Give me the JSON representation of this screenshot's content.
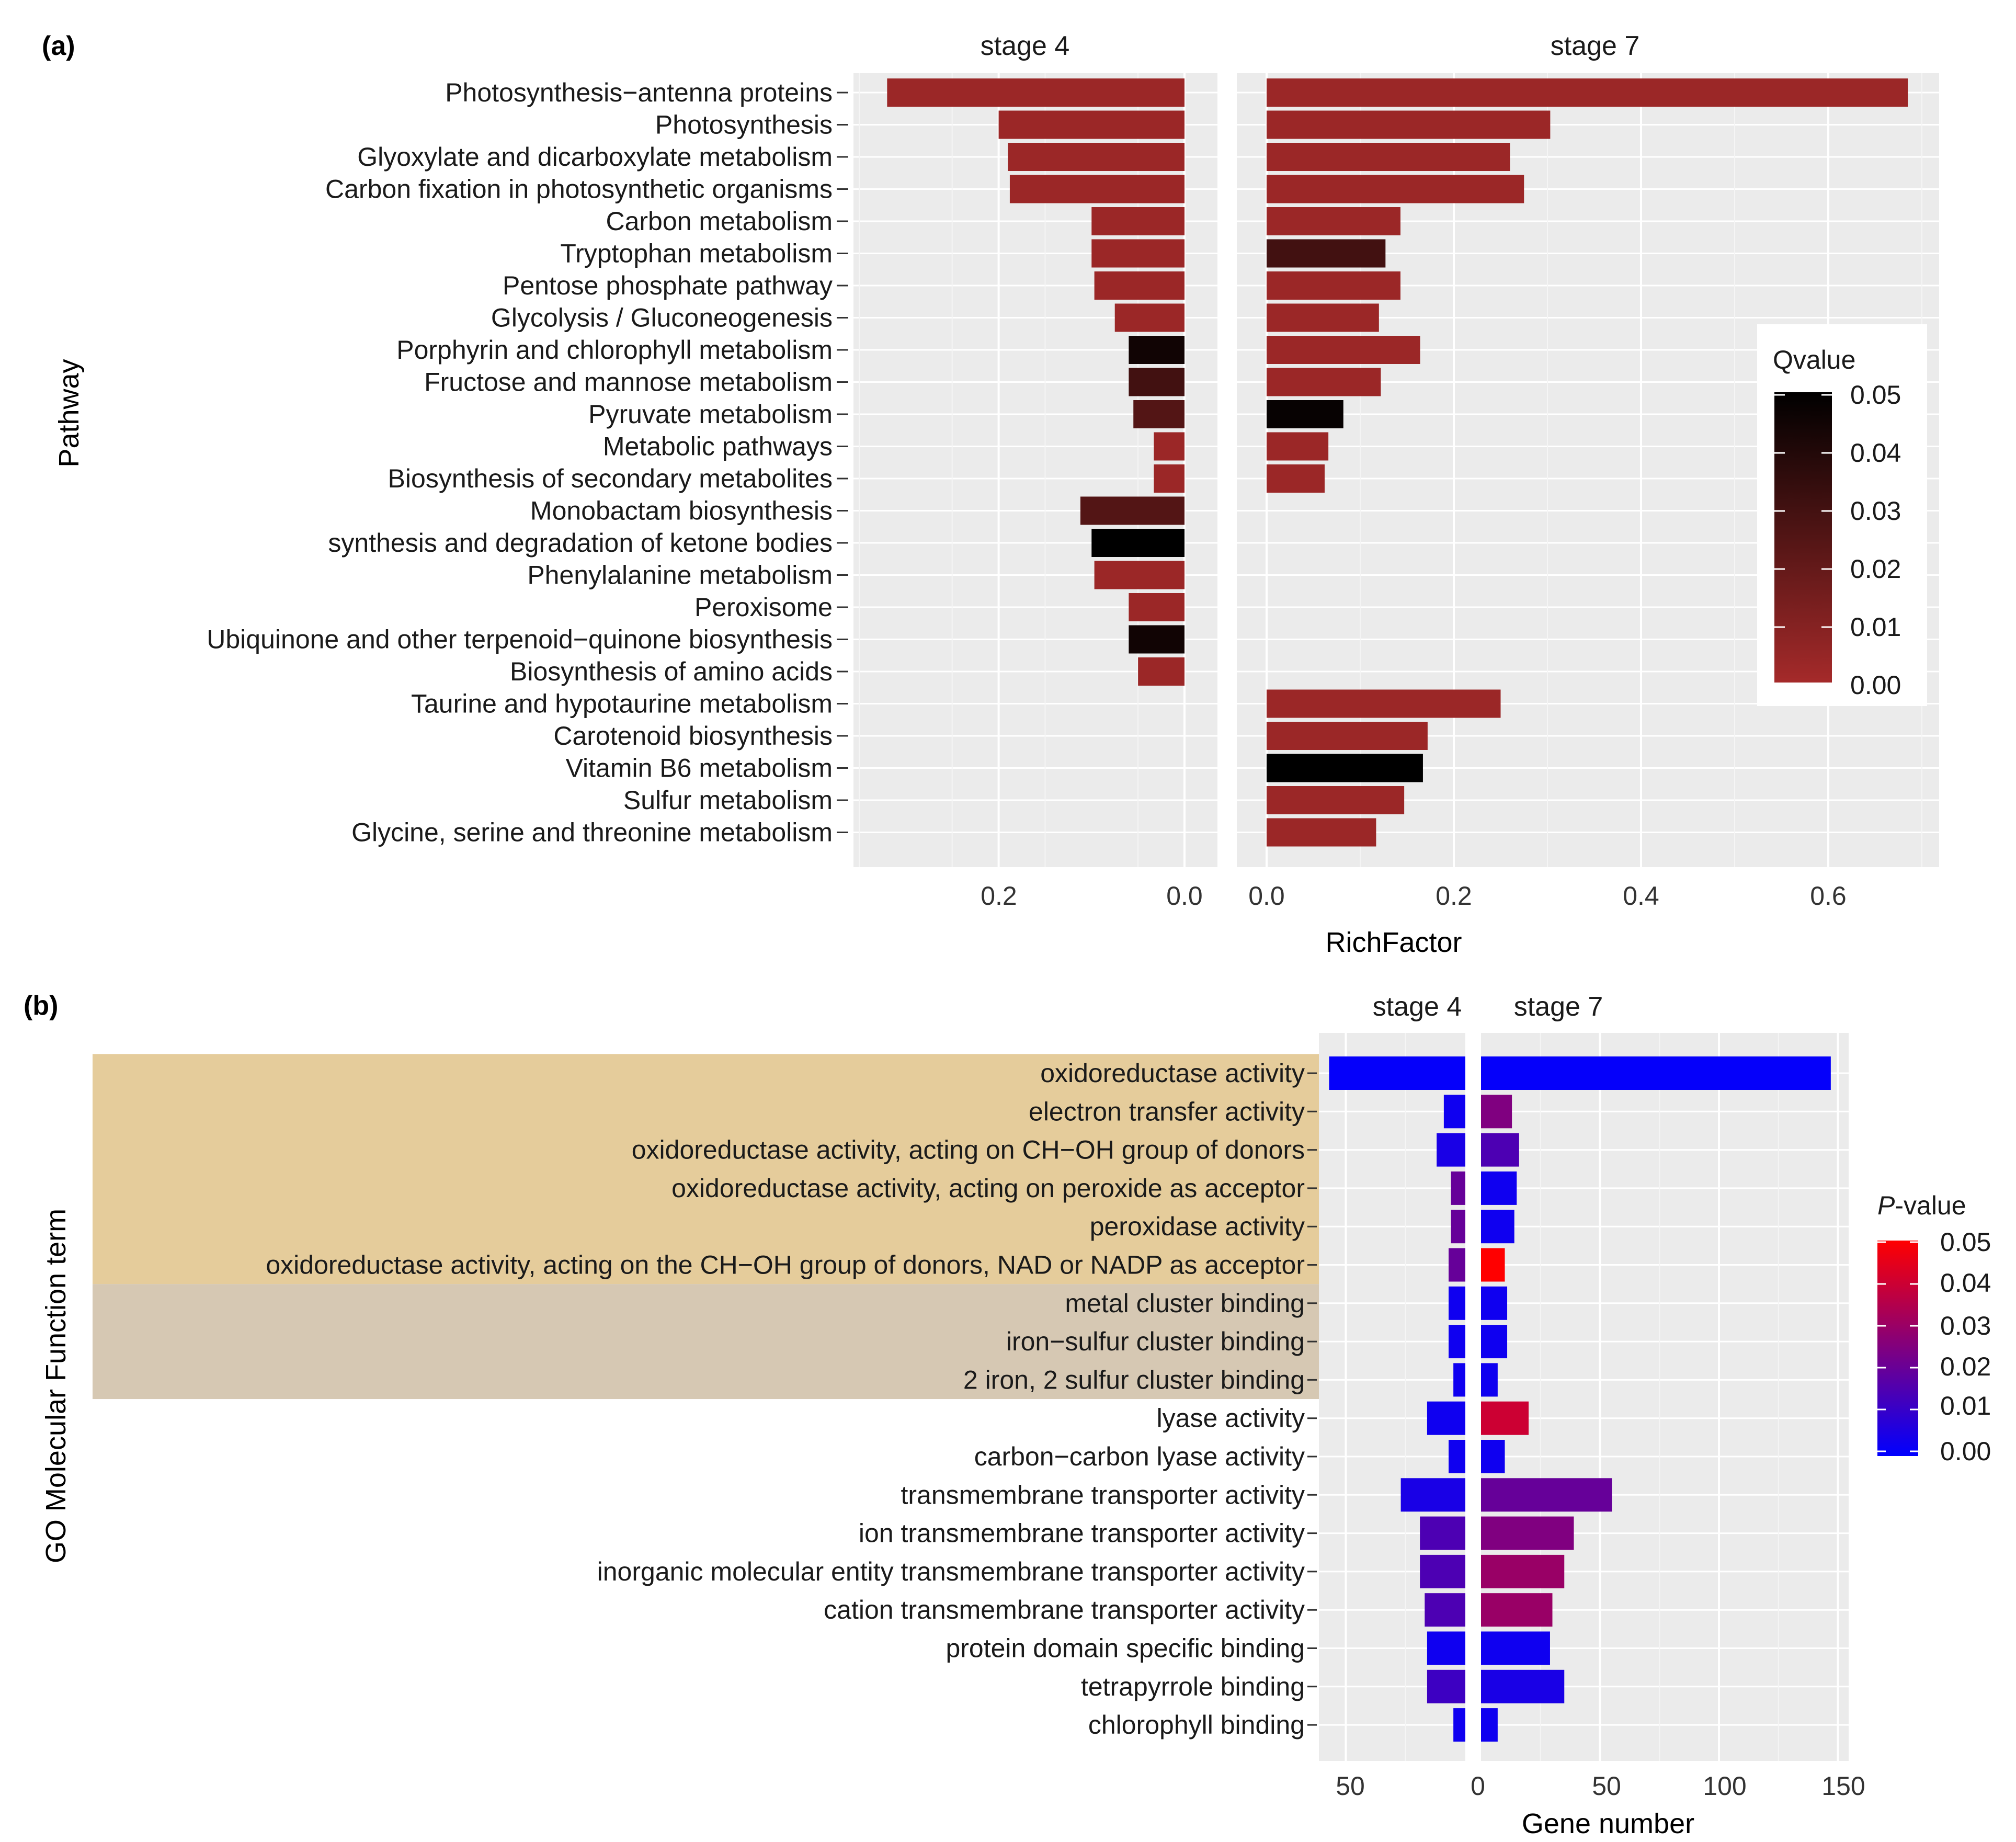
{
  "chart_data": [
    {
      "type": "bar",
      "panel_label": "(a)",
      "title": "",
      "ylabel": "Pathway",
      "xlabel": "RichFactor",
      "facets": [
        "stage 4",
        "stage 7"
      ],
      "facet_ticks": [
        [
          "0.2",
          "0.0"
        ],
        [
          "0.0",
          "0.2",
          "0.4",
          "0.6"
        ]
      ],
      "categories": [
        "Photosynthesis−antenna proteins",
        "Photosynthesis",
        "Glyoxylate and dicarboxylate metabolism",
        "Carbon fixation in photosynthetic organisms",
        "Carbon metabolism",
        "Tryptophan metabolism",
        "Pentose phosphate pathway",
        "Glycolysis / Gluconeogenesis",
        "Porphyrin and chlorophyll metabolism",
        "Fructose and mannose metabolism",
        "Pyruvate metabolism",
        "Metabolic pathways",
        "Biosynthesis of secondary metabolites",
        "Monobactam biosynthesis",
        "synthesis and degradation of ketone bodies",
        "Phenylalanine metabolism",
        "Peroxisome",
        "Ubiquinone and other terpenoid−quinone biosynthesis",
        "Biosynthesis of amino acids",
        "Taurine and hypotaurine metabolism",
        "Carotenoid biosynthesis",
        "Vitamin B6 metabolism",
        "Sulfur metabolism",
        "Glycine, serine and threonine metabolism"
      ],
      "series": [
        {
          "name": "stage 4",
          "values": [
            0.32,
            0.2,
            0.19,
            0.188,
            0.1,
            0.1,
            0.097,
            0.075,
            0.06,
            0.06,
            0.055,
            0.033,
            0.033,
            0.112,
            0.1,
            0.097,
            0.06,
            0.06,
            0.05,
            null,
            null,
            null,
            null,
            null
          ],
          "qvalue": [
            0.003,
            0.003,
            0.003,
            0.003,
            0.003,
            0.003,
            0.003,
            0.003,
            0.045,
            0.03,
            0.025,
            0.003,
            0.003,
            0.025,
            0.05,
            0.003,
            0.003,
            0.045,
            0.003,
            null,
            null,
            null,
            null,
            null
          ]
        },
        {
          "name": "stage 7",
          "values": [
            0.685,
            0.303,
            0.26,
            0.275,
            0.143,
            0.127,
            0.143,
            0.12,
            0.164,
            0.122,
            0.082,
            0.066,
            0.062,
            null,
            null,
            null,
            null,
            null,
            null,
            0.25,
            0.172,
            0.167,
            0.147,
            0.117
          ],
          "qvalue": [
            0.003,
            0.003,
            0.003,
            0.003,
            0.003,
            0.03,
            0.003,
            0.003,
            0.003,
            0.003,
            0.048,
            0.003,
            0.003,
            null,
            null,
            null,
            null,
            null,
            null,
            0.003,
            0.003,
            0.05,
            0.003,
            0.003
          ]
        }
      ],
      "legend": {
        "title": "Qvalue",
        "position": "right",
        "ticks": [
          "0.05",
          "0.04",
          "0.03",
          "0.02",
          "0.01",
          "0.00"
        ],
        "range": [
          0,
          0.05
        ],
        "color_low": "#a52a2a",
        "color_high": "#000000"
      }
    },
    {
      "type": "bar",
      "panel_label": "(b)",
      "title": "",
      "ylabel": "GO Molecular Function term",
      "xlabel": "Gene number",
      "facets": [
        "stage 4",
        "stage 7"
      ],
      "x_ticks": [
        "50",
        "0",
        "50",
        "100",
        "150"
      ],
      "categories": [
        "oxidoreductase activity",
        "electron transfer activity",
        "oxidoreductase activity, acting on CH−OH group of donors",
        "oxidoreductase activity, acting on peroxide as acceptor",
        "peroxidase activity",
        "oxidoreductase activity, acting on the CH−OH group of donors, NAD or NADP as acceptor",
        "metal cluster binding",
        "iron−sulfur cluster binding",
        "2 iron, 2 sulfur cluster binding",
        "lyase activity",
        "carbon−carbon lyase activity",
        "transmembrane transporter activity",
        "ion transmembrane transporter activity",
        "inorganic molecular entity transmembrane transporter activity",
        "cation transmembrane transporter activity",
        "protein domain specific binding",
        "tetrapyrrole binding",
        "chlorophyll binding"
      ],
      "highlight_groups": [
        {
          "from": 0,
          "to": 5,
          "color": "#e5cc9b"
        },
        {
          "from": 6,
          "to": 8,
          "color": "#d6c8b3"
        }
      ],
      "series": [
        {
          "name": "stage 4",
          "values": [
            57,
            9,
            12,
            6,
            6,
            7,
            7,
            7,
            5,
            16,
            7,
            27,
            19,
            19,
            17,
            16,
            16,
            5
          ],
          "pvalue": [
            0.001,
            0.003,
            0.005,
            0.02,
            0.02,
            0.02,
            0.003,
            0.003,
            0.003,
            0.003,
            0.003,
            0.005,
            0.015,
            0.015,
            0.015,
            0.003,
            0.012,
            0.003
          ]
        },
        {
          "name": "stage 7",
          "values": [
            147,
            13,
            16,
            15,
            14,
            10,
            11,
            11,
            7,
            20,
            10,
            55,
            39,
            35,
            30,
            29,
            35,
            7
          ],
          "pvalue": [
            0.001,
            0.025,
            0.015,
            0.003,
            0.003,
            0.05,
            0.003,
            0.003,
            0.003,
            0.04,
            0.003,
            0.02,
            0.025,
            0.03,
            0.03,
            0.003,
            0.005,
            0.003
          ]
        }
      ],
      "legend": {
        "title_italic": "P",
        "title_rest": "-value",
        "position": "right",
        "ticks": [
          "0.05",
          "0.04",
          "0.03",
          "0.02",
          "0.01",
          "0.00"
        ],
        "range": [
          0,
          0.05
        ],
        "color_low": "#0000ff",
        "color_high": "#ff0000"
      }
    }
  ]
}
